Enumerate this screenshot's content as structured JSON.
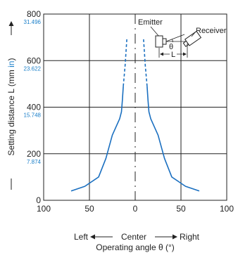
{
  "chart_data": {
    "type": "line",
    "title": "",
    "xlabel": "Operating angle θ (°)",
    "direction_label": {
      "left": "Left",
      "center": "Center",
      "right": "Right"
    },
    "ylabel": {
      "prefix": "Setting distance L (mm ",
      "unit_alt": "in",
      "suffix": ")"
    },
    "xlim": [
      -100,
      100
    ],
    "ylim": [
      0,
      800
    ],
    "x_tick_values": [
      -100,
      -50,
      0,
      50,
      100
    ],
    "x_tick_labels": [
      "100",
      "50",
      "0",
      "50",
      "100"
    ],
    "y_ticks": [
      0,
      200,
      400,
      600,
      800
    ],
    "y_tick_labels": [
      "0",
      "200",
      "400",
      "600",
      "800"
    ],
    "y_tick_inch_labels": [
      "",
      "7.874",
      "15.748",
      "23.622",
      "31.496"
    ],
    "grid": true,
    "center_line": "dashed",
    "colors": {
      "series": "#1a6fc0",
      "inch": "#1a7fc9"
    },
    "series": [
      {
        "side": "left",
        "solid": [
          [
            -70,
            40
          ],
          [
            -55,
            60
          ],
          [
            -40,
            100
          ],
          [
            -32,
            180
          ],
          [
            -25,
            280
          ],
          [
            -17,
            350
          ],
          [
            -15,
            380
          ],
          [
            -14,
            430
          ],
          [
            -13,
            490
          ]
        ],
        "dashed": [
          [
            -13,
            490
          ],
          [
            -11,
            580
          ],
          [
            -9,
            700
          ]
        ]
      },
      {
        "side": "right",
        "solid": [
          [
            70,
            40
          ],
          [
            55,
            60
          ],
          [
            40,
            100
          ],
          [
            32,
            180
          ],
          [
            25,
            280
          ],
          [
            17,
            350
          ],
          [
            15,
            380
          ],
          [
            14,
            430
          ],
          [
            13,
            490
          ]
        ],
        "dashed": [
          [
            13,
            490
          ],
          [
            11,
            580
          ],
          [
            9,
            700
          ]
        ]
      }
    ],
    "annotations": {
      "emitter": "Emitter",
      "receiver": "Receiver",
      "theta": "θ",
      "distance": "L"
    }
  }
}
